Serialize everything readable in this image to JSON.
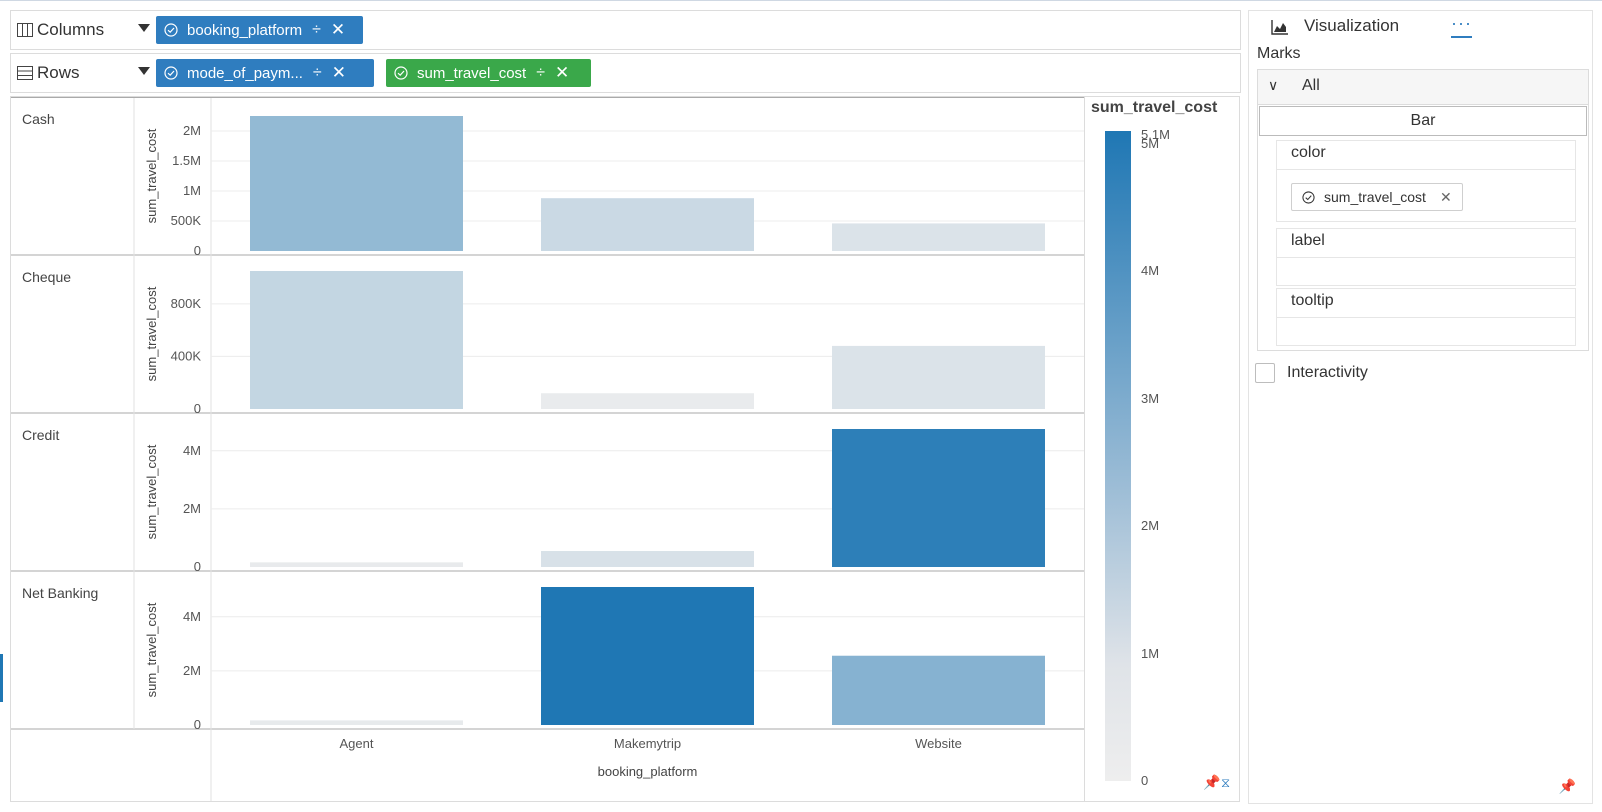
{
  "shelves": {
    "columns": {
      "label": "Columns",
      "pills": [
        {
          "label": "booking_platform",
          "color": "#2f7dbf"
        }
      ]
    },
    "rows": {
      "label": "Rows",
      "pills": [
        {
          "label": "mode_of_paym...",
          "color": "#2f7dbf"
        },
        {
          "label": "sum_travel_cost",
          "color": "#3aa84a"
        }
      ]
    },
    "sort_glyph": "÷",
    "remove_glyph": "✕"
  },
  "chart_data": {
    "type": "bar",
    "categories": [
      "Agent",
      "Makemytrip",
      "Website"
    ],
    "xlabel": "booking_platform",
    "ylabel": "sum_travel_cost",
    "color_scale": {
      "low": "#eeeeee",
      "high": "#1f77b4",
      "min": 0,
      "max": 5100000
    },
    "grid": true,
    "panels": [
      {
        "row": "Cash",
        "values": [
          2250000,
          880000,
          460000
        ],
        "ylim": [
          0,
          2300000
        ],
        "ticks": [
          {
            "v": 0,
            "label": "0"
          },
          {
            "v": 500000,
            "label": "500K"
          },
          {
            "v": 1000000,
            "label": "1M"
          },
          {
            "v": 1500000,
            "label": "1.5M"
          },
          {
            "v": 2000000,
            "label": "2M"
          }
        ]
      },
      {
        "row": "Cheque",
        "values": [
          1050000,
          120000,
          480000
        ],
        "ylim": [
          0,
          1050000
        ],
        "ticks": [
          {
            "v": 0,
            "label": "0"
          },
          {
            "v": 400000,
            "label": "400K"
          },
          {
            "v": 800000,
            "label": "800K"
          }
        ]
      },
      {
        "row": "Credit",
        "values": [
          160000,
          550000,
          4750000
        ],
        "ylim": [
          0,
          4750000
        ],
        "ticks": [
          {
            "v": 0,
            "label": "0"
          },
          {
            "v": 2000000,
            "label": "2M"
          },
          {
            "v": 4000000,
            "label": "4M"
          }
        ]
      },
      {
        "row": "Net Banking",
        "values": [
          170000,
          5100000,
          2560000
        ],
        "ylim": [
          0,
          5100000
        ],
        "ticks": [
          {
            "v": 0,
            "label": "0"
          },
          {
            "v": 2000000,
            "label": "2M"
          },
          {
            "v": 4000000,
            "label": "4M"
          }
        ]
      }
    ]
  },
  "legend": {
    "title": "sum_travel_cost",
    "max_label": "5.1M",
    "ticks": [
      {
        "v": 5000000,
        "label": "5M"
      },
      {
        "v": 4000000,
        "label": "4M"
      },
      {
        "v": 3000000,
        "label": "3M"
      },
      {
        "v": 2000000,
        "label": "2M"
      },
      {
        "v": 1000000,
        "label": "1M"
      },
      {
        "v": 0,
        "label": "0"
      }
    ]
  },
  "panel": {
    "title": "Visualization",
    "more_label": "···",
    "marks_label": "Marks",
    "all_label": "All",
    "mark_type": "Bar",
    "color_label": "color",
    "color_field": "sum_travel_cost",
    "label_label": "label",
    "tooltip_label": "tooltip",
    "interactivity_label": "Interactivity",
    "icons": {
      "columns": "columns-icon",
      "rows": "rows-icon",
      "viz": "area-chart-icon",
      "pin": "pin-icon"
    }
  }
}
